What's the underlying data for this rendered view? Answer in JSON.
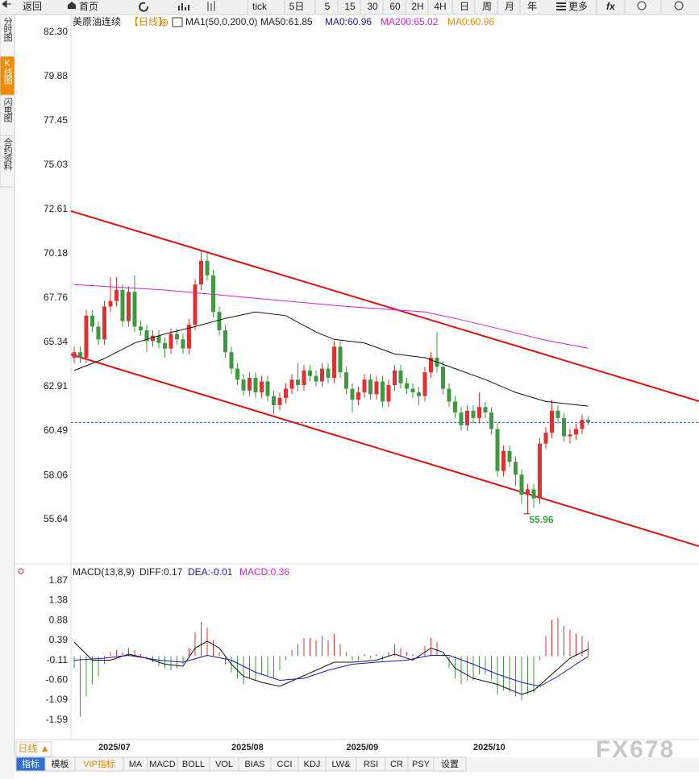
{
  "toolbar": {
    "back": "返回",
    "home": "首页",
    "buttons": [
      "tick",
      "5日",
      "5",
      "15",
      "30",
      "60",
      "2H",
      "4H",
      "日",
      "周",
      "月",
      "年"
    ],
    "more": "更多"
  },
  "sidebar": [
    "分时图",
    "K线图",
    "闪电图",
    "合约资料"
  ],
  "chart_data": [
    {
      "type": "candlestick",
      "legend": [
        {
          "text": "美原油连续",
          "color": "#222222"
        },
        {
          "text": "【日线】",
          "color": "#e08a00"
        },
        {
          "text": "MA1(50,0,200,0)",
          "color": "#222222"
        },
        {
          "text": "MA50:61.85",
          "color": "#222222"
        },
        {
          "text": "MA0:60.96",
          "color": "#1a1aa6"
        },
        {
          "text": "MA200:65.02",
          "color": "#d81ed8"
        },
        {
          "text": "MA0:60.96",
          "color": "#f08a00"
        }
      ],
      "categories": [
        null,
        null,
        null,
        null,
        "2025/07",
        null,
        null,
        null,
        null,
        null,
        null,
        null,
        null,
        null,
        null,
        null,
        null,
        null,
        null,
        null,
        null,
        null,
        null,
        null,
        null,
        null,
        "2025/08",
        null,
        null,
        null,
        null,
        null,
        null,
        null,
        null,
        null,
        null,
        null,
        null,
        null,
        null,
        null,
        null,
        null,
        null,
        "2025/09",
        null,
        null,
        null,
        null,
        null,
        null,
        null,
        null,
        null,
        null,
        null,
        null,
        null,
        null,
        null,
        null,
        null,
        null,
        null,
        null,
        "2025/10",
        null,
        null,
        null,
        null,
        null,
        null,
        null,
        null,
        null,
        null,
        null,
        null,
        null,
        null,
        null,
        null,
        null,
        null,
        null
      ],
      "open": [
        64.5,
        64.8,
        64.5,
        66.8,
        66.2,
        65.5,
        67.3,
        67.6,
        68.2,
        66.5,
        68.1,
        66.2,
        66.0,
        65.4,
        65.7,
        65.3,
        65.0,
        65.8,
        65.5,
        65.0,
        66.3,
        68.5,
        69.8,
        69.0,
        67.0,
        66.0,
        64.8,
        63.9,
        63.3,
        62.7,
        63.4,
        62.6,
        63.2,
        62.4,
        61.9,
        62.3,
        62.8,
        63.3,
        63.0,
        63.8,
        63.5,
        63.2,
        63.9,
        63.4,
        65.1,
        63.7,
        62.8,
        62.2,
        62.6,
        63.3,
        62.5,
        63.2,
        62.1,
        63.0,
        63.8,
        63.1,
        62.8,
        62.6,
        62.4,
        63.7,
        64.5,
        64.0,
        62.8,
        62.1,
        61.5,
        60.8,
        61.6,
        61.2,
        61.8,
        61.5,
        60.6,
        58.3,
        59.4,
        58.8,
        58.1,
        57.0,
        57.3,
        56.8,
        59.8,
        60.4,
        61.6,
        61.2,
        60.2,
        60.3,
        60.6,
        61.1
      ],
      "high": [
        65.1,
        65.1,
        67.1,
        67.1,
        66.5,
        67.6,
        68.9,
        68.9,
        68.5,
        68.4,
        69.0,
        66.5,
        66.3,
        66.0,
        66.0,
        65.6,
        66.1,
        66.1,
        65.8,
        66.6,
        68.8,
        70.3,
        70.2,
        69.3,
        67.3,
        66.3,
        65.1,
        64.2,
        63.6,
        63.7,
        63.7,
        63.5,
        63.5,
        62.7,
        62.6,
        63.1,
        63.6,
        64.2,
        64.1,
        64.1,
        63.8,
        64.2,
        64.2,
        65.4,
        65.4,
        64.0,
        63.1,
        62.9,
        63.6,
        63.6,
        63.5,
        63.5,
        63.3,
        64.1,
        64.1,
        63.4,
        63.1,
        62.9,
        64.0,
        64.8,
        65.9,
        64.3,
        63.1,
        62.4,
        61.8,
        61.9,
        61.9,
        62.6,
        62.1,
        61.8,
        60.9,
        59.7,
        59.7,
        59.1,
        58.4,
        57.6,
        57.6,
        60.1,
        60.7,
        62.2,
        61.9,
        61.5,
        60.6,
        60.9,
        61.4,
        61.3
      ],
      "low": [
        64.2,
        64.2,
        64.2,
        65.9,
        65.2,
        65.2,
        67.0,
        67.3,
        66.2,
        66.2,
        65.9,
        65.7,
        64.8,
        65.1,
        65.0,
        64.5,
        64.7,
        65.2,
        64.7,
        64.7,
        66.0,
        68.2,
        68.7,
        66.7,
        65.7,
        64.5,
        63.6,
        63.0,
        62.4,
        62.4,
        62.3,
        62.3,
        62.1,
        61.4,
        61.6,
        62.0,
        62.5,
        62.7,
        62.7,
        63.2,
        62.9,
        62.9,
        63.1,
        63.1,
        63.4,
        62.5,
        61.5,
        61.9,
        62.3,
        62.2,
        62.2,
        61.8,
        61.8,
        62.7,
        62.8,
        62.5,
        62.3,
        61.9,
        62.1,
        63.4,
        63.7,
        62.5,
        61.8,
        61.2,
        60.5,
        60.5,
        60.9,
        60.9,
        61.2,
        60.3,
        58.0,
        58.0,
        58.5,
        57.5,
        56.5,
        55.96,
        56.3,
        56.5,
        59.5,
        60.1,
        60.9,
        59.9,
        59.8,
        60.0,
        60.3,
        60.8
      ],
      "close": [
        64.8,
        64.5,
        66.8,
        66.2,
        65.5,
        67.3,
        67.6,
        68.2,
        66.5,
        68.1,
        66.2,
        66.0,
        65.4,
        65.7,
        65.3,
        65.0,
        65.8,
        65.5,
        65.0,
        66.3,
        68.5,
        69.8,
        69.0,
        67.0,
        66.0,
        64.8,
        63.9,
        63.3,
        62.7,
        63.4,
        62.6,
        63.2,
        62.4,
        61.9,
        62.3,
        62.8,
        63.3,
        63.0,
        63.8,
        63.5,
        63.2,
        63.9,
        63.4,
        65.1,
        63.7,
        62.8,
        62.2,
        62.6,
        63.3,
        62.5,
        63.2,
        62.1,
        63.0,
        63.8,
        63.1,
        62.8,
        62.6,
        62.4,
        63.7,
        64.5,
        64.0,
        62.8,
        62.1,
        61.5,
        60.8,
        61.6,
        61.2,
        61.8,
        61.5,
        60.6,
        58.3,
        59.4,
        58.8,
        58.1,
        57.0,
        57.3,
        56.8,
        59.8,
        60.4,
        61.6,
        61.2,
        60.2,
        60.3,
        60.6,
        61.1,
        60.96
      ],
      "up_color": "#e0302f",
      "down_color": "#3f9a3f",
      "lines": [
        {
          "color": "#111111",
          "x": [
            0,
            5,
            10,
            15,
            20,
            25,
            30,
            35,
            40,
            43,
            48,
            53,
            58,
            63,
            68,
            73,
            78,
            85
          ],
          "values": [
            63.8,
            64.45,
            65.3,
            65.8,
            66.2,
            66.65,
            67.0,
            66.8,
            65.9,
            65.5,
            65.3,
            64.7,
            64.5,
            63.9,
            63.3,
            62.6,
            62.1,
            61.85
          ]
        },
        {
          "color": "#d81ed8",
          "x": [
            0,
            15,
            30,
            45,
            58,
            63,
            70,
            78,
            85
          ],
          "values": [
            68.5,
            68.2,
            67.75,
            67.3,
            67.0,
            66.65,
            66.1,
            65.45,
            65.02
          ]
        }
      ],
      "last_price_color": "#2a6acb",
      "ylim": [
        53.44,
        83.18
      ],
      "yticks": [
        {
          "value": 82.3,
          "label": "82.30"
        },
        79.88,
        77.45,
        75.03,
        72.61,
        70.18,
        67.76,
        65.34,
        62.91,
        60.49,
        58.06,
        55.64
      ]
    },
    {
      "type": "macd",
      "legend": [
        {
          "text": "MACD(13,8,9)",
          "color": "#222222"
        },
        {
          "text": "DIFF:0.17",
          "color": "#222222"
        },
        {
          "text": "DEA:-0.01",
          "color": "#1a1aa6"
        },
        {
          "text": "MACD:0.36",
          "color": "#d81ed8"
        }
      ],
      "hist": [
        -0.3,
        -1.5,
        -1.0,
        -0.7,
        -0.5,
        -0.2,
        0.1,
        0.15,
        0.1,
        0.2,
        0.15,
        0.05,
        -0.1,
        -0.15,
        -0.25,
        -0.3,
        -0.35,
        -0.3,
        -0.2,
        0.2,
        0.6,
        0.85,
        0.7,
        0.4,
        0.1,
        -0.2,
        -0.4,
        -0.55,
        -0.7,
        -0.55,
        -0.6,
        -0.45,
        -0.5,
        -0.55,
        -0.35,
        -0.1,
        0.15,
        0.3,
        0.45,
        0.45,
        0.4,
        0.5,
        0.4,
        0.55,
        0.3,
        0.1,
        -0.1,
        -0.1,
        0.05,
        -0.05,
        0.05,
        -0.1,
        0.1,
        0.3,
        0.2,
        0.1,
        0.05,
        -0.05,
        0.25,
        0.45,
        0.35,
        0.05,
        -0.3,
        -0.55,
        -0.7,
        -0.6,
        -0.6,
        -0.45,
        -0.45,
        -0.6,
        -0.95,
        -0.85,
        -0.9,
        -1.0,
        -1.1,
        -0.95,
        -0.9,
        -0.1,
        0.5,
        0.9,
        0.95,
        0.75,
        0.65,
        0.55,
        0.5,
        0.36
      ],
      "up_color": "#e0302f",
      "down_color": "#3f9a3f",
      "lines": [
        {
          "color": "#111111",
          "x": [
            0,
            3,
            6,
            9,
            12,
            15,
            18,
            20,
            22,
            24,
            26,
            28,
            31,
            34,
            37,
            40,
            43,
            46,
            50,
            53,
            56,
            59,
            61,
            63,
            66,
            70,
            74,
            76,
            79,
            82,
            85
          ],
          "values": [
            0.35,
            -0.1,
            -0.1,
            0.05,
            -0.05,
            -0.2,
            -0.25,
            0.2,
            0.37,
            0.2,
            -0.2,
            -0.5,
            -0.65,
            -0.75,
            -0.55,
            -0.35,
            -0.15,
            -0.15,
            -0.1,
            0.05,
            -0.1,
            0.2,
            0.1,
            -0.3,
            -0.55,
            -0.7,
            -0.95,
            -0.85,
            -0.45,
            -0.05,
            0.17
          ]
        },
        {
          "color": "#1a1aa6",
          "x": [
            0,
            5,
            9,
            14,
            18,
            22,
            26,
            30,
            34,
            38,
            42,
            46,
            50,
            55,
            59,
            62,
            66,
            70,
            74,
            77,
            80,
            83,
            85
          ],
          "values": [
            -0.1,
            -0.05,
            0.02,
            -0.1,
            -0.15,
            0.02,
            -0.1,
            -0.4,
            -0.6,
            -0.55,
            -0.35,
            -0.2,
            -0.15,
            -0.1,
            0.02,
            0.02,
            -0.2,
            -0.45,
            -0.65,
            -0.75,
            -0.5,
            -0.2,
            -0.01
          ]
        }
      ],
      "ylim": [
        -2.07,
        2.19
      ],
      "yticks": [
        1.87,
        1.38,
        0.88,
        0.39,
        -0.11,
        {
          "value": -0.6,
          "label": "-0.60"
        },
        -1.09,
        -1.59
      ]
    }
  ],
  "bottom": {
    "period": "日线 ▲",
    "tabs": [
      "指标",
      "模板",
      "VIP指标",
      "MA",
      "MACD",
      "BOLL",
      "VOL",
      "BIAS",
      "CCI",
      "KDJ",
      "LW&",
      "RSI",
      "CR",
      "PSY",
      "设置"
    ]
  },
  "watermark": "FX678"
}
